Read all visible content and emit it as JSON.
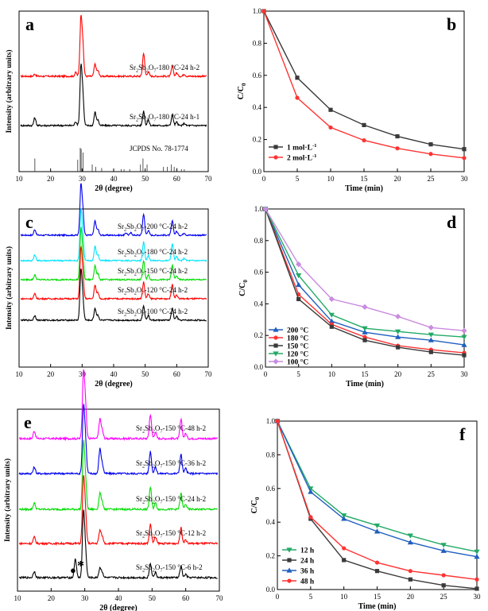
{
  "chart_data": [
    {
      "panel": "a",
      "type": "line",
      "xlabel": "2θ (degree)",
      "ylabel": "Intensity (arbitrary units)",
      "xlim": [
        10,
        70
      ],
      "xticks": [
        10,
        20,
        30,
        40,
        50,
        60,
        70
      ],
      "grid": false,
      "series": [
        {
          "name": "Sr2Sb2O7-180 °C-24 h-2",
          "color": "#ff0000",
          "peaks": [
            [
              15.0,
              0.04
            ],
            [
              28.0,
              0.07
            ],
            [
              29.6,
              1.0
            ],
            [
              30.2,
              0.55
            ],
            [
              34.1,
              0.22
            ],
            [
              35.0,
              0.1
            ],
            [
              49.5,
              0.42
            ],
            [
              51.0,
              0.08
            ],
            [
              58.6,
              0.18
            ],
            [
              60.0,
              0.06
            ],
            [
              62.4,
              0.04
            ]
          ]
        },
        {
          "name": "Sr2Sb2O7-180 °C-24 h-1",
          "color": "#000000",
          "peaks": [
            [
              15.0,
              0.14
            ],
            [
              28.0,
              0.07
            ],
            [
              29.6,
              1.0
            ],
            [
              30.2,
              0.55
            ],
            [
              34.1,
              0.24
            ],
            [
              35.0,
              0.1
            ],
            [
              49.5,
              0.26
            ],
            [
              51.0,
              0.1
            ],
            [
              58.6,
              0.19
            ],
            [
              60.0,
              0.06
            ],
            [
              62.4,
              0.04
            ]
          ]
        }
      ],
      "reference": {
        "name": "JCPDS No. 78-1774",
        "color": "#444444",
        "lines": [
          [
            15.0,
            0.55
          ],
          [
            28.6,
            0.5
          ],
          [
            29.4,
            1.0
          ],
          [
            29.7,
            0.95
          ],
          [
            30.3,
            0.8
          ],
          [
            33.2,
            0.3
          ],
          [
            34.3,
            0.2
          ],
          [
            36.2,
            0.15
          ],
          [
            42.4,
            0.1
          ],
          [
            43.3,
            0.1
          ],
          [
            45.1,
            0.1
          ],
          [
            48.5,
            0.3
          ],
          [
            49.3,
            0.55
          ],
          [
            50.6,
            0.3
          ],
          [
            55.8,
            0.2
          ],
          [
            57.0,
            0.2
          ],
          [
            58.3,
            0.3
          ],
          [
            59.2,
            0.2
          ],
          [
            60.1,
            0.15
          ],
          [
            61.5,
            0.1
          ],
          [
            62.4,
            0.1
          ]
        ]
      }
    },
    {
      "panel": "b",
      "type": "line",
      "xlabel": "Time (min)",
      "ylabel": "C/C0",
      "xlim": [
        0,
        30
      ],
      "ylim": [
        0,
        1.0
      ],
      "xticks": [
        0,
        5,
        10,
        15,
        20,
        25,
        30
      ],
      "yticks": [
        0.0,
        0.2,
        0.4,
        0.6,
        0.8,
        1.0
      ],
      "legend": "bottom-left",
      "x": [
        0,
        5,
        10,
        15,
        20,
        25,
        30
      ],
      "series": [
        {
          "name": "1 mol·L-1",
          "color": "#3a3a3a",
          "marker": "square",
          "values": [
            1.0,
            0.585,
            0.385,
            0.29,
            0.22,
            0.17,
            0.14
          ]
        },
        {
          "name": "2 mol·L-1",
          "color": "#ff3333",
          "marker": "circle",
          "values": [
            1.0,
            0.46,
            0.275,
            0.195,
            0.145,
            0.11,
            0.085
          ]
        }
      ]
    },
    {
      "panel": "c",
      "type": "line",
      "xlabel": "2θ (degree)",
      "ylabel": "Intensity (arbitrary units)",
      "xlim": [
        10,
        70
      ],
      "xticks": [
        10,
        20,
        30,
        40,
        50,
        60,
        70
      ],
      "grid": false,
      "series": [
        {
          "name": "Sr2Sb2O7-200 °C-24 h-2",
          "color": "#0000ee",
          "peaks": [
            [
              15.0,
              0.12
            ],
            [
              29.6,
              1.0
            ],
            [
              30.2,
              0.5
            ],
            [
              34.1,
              0.3
            ],
            [
              35.0,
              0.12
            ],
            [
              44.0,
              0.05
            ],
            [
              45.5,
              0.05
            ],
            [
              49.5,
              0.45
            ],
            [
              51.0,
              0.1
            ],
            [
              58.6,
              0.3
            ],
            [
              60.0,
              0.08
            ],
            [
              62.4,
              0.05
            ]
          ]
        },
        {
          "name": "Sr2Sb2O7-180 °C-24 h-2",
          "color": "#00e5ff",
          "peaks": [
            [
              15.0,
              0.12
            ],
            [
              29.6,
              1.0
            ],
            [
              30.2,
              0.5
            ],
            [
              34.1,
              0.3
            ],
            [
              35.0,
              0.12
            ],
            [
              49.5,
              0.4
            ],
            [
              51.0,
              0.1
            ],
            [
              58.6,
              0.35
            ],
            [
              60.0,
              0.08
            ],
            [
              62.4,
              0.05
            ]
          ]
        },
        {
          "name": "Sr2Sb2O7-150 °C-24 h-2",
          "color": "#00dd00",
          "peaks": [
            [
              15.0,
              0.1
            ],
            [
              29.6,
              1.0
            ],
            [
              30.2,
              0.5
            ],
            [
              34.1,
              0.3
            ],
            [
              35.0,
              0.12
            ],
            [
              49.5,
              0.4
            ],
            [
              51.0,
              0.1
            ],
            [
              58.6,
              0.3
            ],
            [
              60.0,
              0.08
            ]
          ]
        },
        {
          "name": "Sr2Sb2O7-120 °C-24 h-2",
          "color": "#ff0000",
          "peaks": [
            [
              15.0,
              0.1
            ],
            [
              29.6,
              1.0
            ],
            [
              30.2,
              0.5
            ],
            [
              34.1,
              0.28
            ],
            [
              35.0,
              0.12
            ],
            [
              49.5,
              0.35
            ],
            [
              51.0,
              0.1
            ],
            [
              58.6,
              0.3
            ],
            [
              60.0,
              0.08
            ]
          ]
        },
        {
          "name": "Sr2Sb2O7-100 °C-24 h-2",
          "color": "#000000",
          "peaks": [
            [
              15.0,
              0.1
            ],
            [
              29.6,
              1.0
            ],
            [
              30.2,
              0.45
            ],
            [
              34.1,
              0.25
            ],
            [
              35.0,
              0.1
            ],
            [
              49.5,
              0.3
            ],
            [
              51.0,
              0.1
            ],
            [
              58.6,
              0.25
            ],
            [
              60.0,
              0.08
            ]
          ]
        }
      ]
    },
    {
      "panel": "d",
      "type": "line",
      "xlabel": "Time (min)",
      "ylabel": "C/C0",
      "xlim": [
        0,
        30
      ],
      "ylim": [
        0,
        1.0
      ],
      "xticks": [
        0,
        5,
        10,
        15,
        20,
        25,
        30
      ],
      "yticks": [
        0.0,
        0.2,
        0.4,
        0.6,
        0.8,
        1.0
      ],
      "legend": "bottom-left",
      "x": [
        0,
        5,
        10,
        15,
        20,
        25,
        30
      ],
      "series": [
        {
          "name": "200 °C",
          "color": "#1f5fbf",
          "marker": "triangle-up",
          "values": [
            1.0,
            0.52,
            0.29,
            0.22,
            0.19,
            0.17,
            0.14
          ]
        },
        {
          "name": "180 °C",
          "color": "#ff3333",
          "marker": "circle",
          "values": [
            1.0,
            0.46,
            0.27,
            0.19,
            0.135,
            0.11,
            0.09
          ]
        },
        {
          "name": "150 °C",
          "color": "#3a3a3a",
          "marker": "square",
          "values": [
            1.0,
            0.43,
            0.255,
            0.17,
            0.125,
            0.095,
            0.075
          ]
        },
        {
          "name": "120 °C",
          "color": "#22aa66",
          "marker": "triangle-down",
          "values": [
            1.0,
            0.58,
            0.33,
            0.245,
            0.225,
            0.205,
            0.19
          ]
        },
        {
          "name": "100 °C",
          "color": "#c98ce0",
          "marker": "diamond",
          "values": [
            1.0,
            0.65,
            0.43,
            0.38,
            0.32,
            0.25,
            0.23
          ]
        }
      ]
    },
    {
      "panel": "e",
      "type": "line",
      "xlabel": "2θ (degree)",
      "ylabel": "Intensity (arbitrary units)",
      "xlim": [
        10,
        70
      ],
      "xticks": [
        10,
        20,
        30,
        40,
        50,
        60,
        70
      ],
      "grid": false,
      "annotations": [
        "●",
        "*"
      ],
      "series": [
        {
          "name": "Sr2Sb2O7-150 °C-48 h-2",
          "color": "#ff00ff",
          "peaks": [
            [
              15.0,
              0.12
            ],
            [
              29.6,
              1.0
            ],
            [
              30.2,
              0.5
            ],
            [
              34.5,
              0.3
            ],
            [
              35.2,
              0.12
            ],
            [
              49.5,
              0.38
            ],
            [
              51.0,
              0.1
            ],
            [
              58.6,
              0.3
            ],
            [
              60.0,
              0.08
            ]
          ]
        },
        {
          "name": "Sr2Sb2O7-150 °C-36 h-2",
          "color": "#0000ee",
          "peaks": [
            [
              15.0,
              0.1
            ],
            [
              29.6,
              1.0
            ],
            [
              30.2,
              0.5
            ],
            [
              34.5,
              0.38
            ],
            [
              35.2,
              0.14
            ],
            [
              49.5,
              0.35
            ],
            [
              51.0,
              0.1
            ],
            [
              58.6,
              0.3
            ],
            [
              60.0,
              0.08
            ]
          ]
        },
        {
          "name": "Sr2Sb2O7-150 °C-24 h-2",
          "color": "#00dd00",
          "peaks": [
            [
              15.0,
              0.1
            ],
            [
              29.6,
              1.0
            ],
            [
              30.2,
              0.45
            ],
            [
              34.5,
              0.25
            ],
            [
              35.2,
              0.1
            ],
            [
              49.5,
              0.35
            ],
            [
              51.0,
              0.1
            ],
            [
              58.6,
              0.25
            ],
            [
              60.0,
              0.08
            ]
          ]
        },
        {
          "name": "Sr2Sb2O7-150 °C-12 h-2",
          "color": "#ff0000",
          "peaks": [
            [
              15.0,
              0.1
            ],
            [
              29.6,
              1.0
            ],
            [
              30.2,
              0.45
            ],
            [
              34.5,
              0.2
            ],
            [
              35.2,
              0.1
            ],
            [
              49.5,
              0.3
            ],
            [
              51.0,
              0.1
            ],
            [
              58.6,
              0.25
            ],
            [
              60.0,
              0.06
            ]
          ]
        },
        {
          "name": "Sr2Sb2O7-150 °C-6 h-2",
          "color": "#000000",
          "peaks": [
            [
              15.0,
              0.1
            ],
            [
              27.2,
              0.3
            ],
            [
              29.6,
              1.0
            ],
            [
              30.2,
              0.4
            ],
            [
              34.5,
              0.15
            ],
            [
              35.2,
              0.08
            ],
            [
              49.5,
              0.22
            ],
            [
              51.0,
              0.08
            ],
            [
              58.6,
              0.18
            ],
            [
              60.0,
              0.05
            ]
          ]
        }
      ]
    },
    {
      "panel": "f",
      "type": "line",
      "xlabel": "Time (min)",
      "ylabel": "C/C0",
      "xlim": [
        0,
        30
      ],
      "ylim": [
        0,
        1.0
      ],
      "xticks": [
        0,
        5,
        10,
        15,
        20,
        25,
        30
      ],
      "yticks": [
        0.0,
        0.2,
        0.4,
        0.6,
        0.8,
        1.0
      ],
      "legend": "bottom-left",
      "x": [
        0,
        5,
        10,
        15,
        20,
        25,
        30
      ],
      "series": [
        {
          "name": "12 h",
          "color": "#22aa66",
          "marker": "triangle-down",
          "values": [
            1.0,
            0.6,
            0.44,
            0.38,
            0.32,
            0.265,
            0.225
          ]
        },
        {
          "name": "24 h",
          "color": "#3a3a3a",
          "marker": "square",
          "values": [
            1.0,
            0.42,
            0.175,
            0.11,
            0.06,
            0.025,
            0.005
          ]
        },
        {
          "name": "36 h",
          "color": "#1f5fbf",
          "marker": "triangle-up",
          "values": [
            1.0,
            0.58,
            0.42,
            0.345,
            0.28,
            0.23,
            0.195
          ]
        },
        {
          "name": "48 h",
          "color": "#ff3333",
          "marker": "circle",
          "values": [
            1.0,
            0.43,
            0.245,
            0.16,
            0.11,
            0.085,
            0.06
          ]
        }
      ]
    }
  ]
}
